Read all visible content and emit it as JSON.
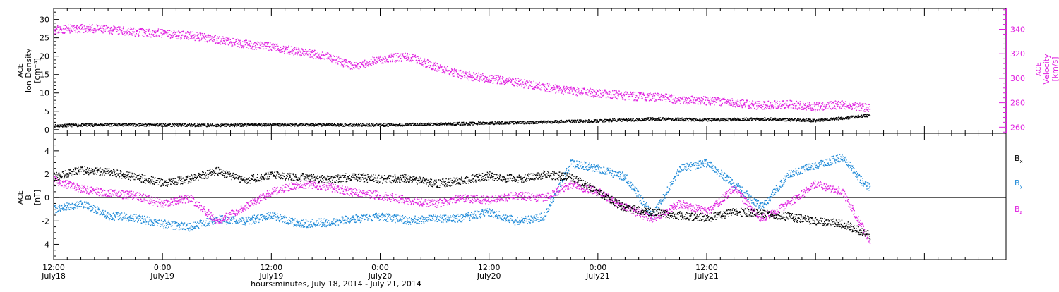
{
  "chart_data": [
    {
      "type": "scatter",
      "panel": "top",
      "ylabel_left": [
        "ACE",
        "Ion Density",
        "[cm⁻³]"
      ],
      "ylabel_right": [
        "ACE",
        "Velocity",
        "[km/s]"
      ],
      "ylim_left": [
        -1,
        33
      ],
      "ylim_right": [
        255,
        357
      ],
      "yticks_left": [
        "0",
        "5",
        "10",
        "15",
        "20",
        "25",
        "30"
      ],
      "yticks_right": [
        "260",
        "280",
        "300",
        "320",
        "340"
      ],
      "colors": {
        "density": "#000000",
        "velocity": "#e020e0"
      },
      "series": [
        {
          "name": "Ion Density",
          "axis": "left",
          "color": "#000000",
          "x": [
            0,
            6,
            12,
            18,
            24,
            30,
            36,
            42,
            48,
            54,
            60,
            66,
            72,
            78,
            84,
            88,
            90
          ],
          "y": [
            1.2,
            1.5,
            1.4,
            1.3,
            1.5,
            1.4,
            1.4,
            1.6,
            1.9,
            2.2,
            2.5,
            3.0,
            2.8,
            3.0,
            2.6,
            3.5,
            4.0
          ]
        },
        {
          "name": "Velocity",
          "axis": "right",
          "color": "#e020e0",
          "x": [
            0,
            3,
            6,
            9,
            12,
            15,
            18,
            21,
            24,
            27,
            30,
            33,
            36,
            39,
            42,
            45,
            48,
            51,
            54,
            57,
            60,
            63,
            66,
            69,
            72,
            75,
            78,
            81,
            84,
            87,
            89,
            90
          ],
          "y": [
            340,
            341,
            340,
            338,
            337,
            335,
            332,
            328,
            326,
            322,
            318,
            310,
            316,
            318,
            310,
            303,
            300,
            297,
            293,
            290,
            288,
            286,
            285,
            283,
            282,
            280,
            278,
            279,
            277,
            279,
            277,
            276
          ]
        }
      ]
    },
    {
      "type": "scatter",
      "panel": "bottom",
      "ylabel_left": [
        "ACE",
        "B",
        "[nT]"
      ],
      "ylim": [
        -5.3,
        5.5
      ],
      "yticks": [
        "-4",
        "-2",
        "0",
        "2",
        "4"
      ],
      "zero_line": true,
      "colors": {
        "Bx": "#000000",
        "By": "#1e8ad8",
        "Bz": "#e020e0"
      },
      "series": [
        {
          "name": "B",
          "sub": "x",
          "color": "#000000",
          "x": [
            0,
            3,
            6,
            9,
            12,
            15,
            18,
            21,
            24,
            27,
            30,
            33,
            36,
            39,
            42,
            45,
            48,
            51,
            54,
            57,
            60,
            63,
            66,
            69,
            72,
            75,
            78,
            81,
            84,
            87,
            90
          ],
          "y": [
            1.8,
            2.4,
            2.2,
            1.8,
            1.3,
            1.6,
            2.3,
            1.5,
            2.0,
            1.8,
            1.6,
            1.8,
            1.6,
            1.7,
            1.2,
            1.5,
            1.9,
            1.6,
            2.0,
            1.8,
            0.5,
            -0.9,
            -1.2,
            -1.5,
            -1.7,
            -1.2,
            -1.3,
            -1.6,
            -2.0,
            -2.2,
            -3.2
          ]
        },
        {
          "name": "B",
          "sub": "y",
          "color": "#1e8ad8",
          "x": [
            0,
            3,
            6,
            9,
            12,
            15,
            18,
            21,
            24,
            27,
            30,
            33,
            36,
            39,
            42,
            45,
            48,
            51,
            54,
            57,
            60,
            63,
            66,
            69,
            72,
            75,
            78,
            81,
            84,
            87,
            89,
            90
          ],
          "y": [
            -1.0,
            -0.5,
            -1.5,
            -1.7,
            -2.2,
            -2.5,
            -1.8,
            -2.0,
            -1.5,
            -2.2,
            -2.1,
            -1.8,
            -1.6,
            -1.9,
            -1.8,
            -1.7,
            -1.2,
            -2.0,
            -1.6,
            3.0,
            2.5,
            1.8,
            -1.5,
            2.5,
            3.0,
            1.2,
            -0.8,
            2.0,
            2.8,
            3.5,
            1.5,
            0.8
          ]
        },
        {
          "name": "B",
          "sub": "z",
          "color": "#e020e0",
          "x": [
            0,
            3,
            6,
            9,
            12,
            15,
            18,
            21,
            24,
            27,
            30,
            33,
            36,
            39,
            42,
            45,
            48,
            51,
            54,
            57,
            60,
            63,
            66,
            69,
            72,
            75,
            78,
            81,
            84,
            87,
            90
          ],
          "y": [
            1.5,
            0.8,
            0.4,
            0.2,
            -0.5,
            0.0,
            -2.0,
            -0.8,
            0.5,
            1.2,
            1.0,
            0.5,
            0.2,
            -0.2,
            -0.5,
            0.0,
            -0.2,
            0.2,
            0.0,
            1.2,
            0.5,
            -0.8,
            -1.8,
            -0.5,
            -1.2,
            0.8,
            -1.8,
            -0.5,
            1.2,
            0.5,
            -3.8
          ]
        }
      ]
    }
  ],
  "x_axis": {
    "ticks": [
      {
        "time": "12:00",
        "day": "July18"
      },
      {
        "time": "0:00",
        "day": "July19"
      },
      {
        "time": "12:00",
        "day": "July19"
      },
      {
        "time": "0:00",
        "day": "July20"
      },
      {
        "time": "12:00",
        "day": "July20"
      },
      {
        "time": "0:00",
        "day": "July21"
      },
      {
        "time": "12:00",
        "day": "July21"
      }
    ],
    "tick_hours": [
      0,
      12,
      24,
      36,
      48,
      60,
      72
    ],
    "xlim": [
      0,
      105
    ],
    "xlabel": "hours:minutes, July 18, 2014 - July 21, 2014"
  }
}
